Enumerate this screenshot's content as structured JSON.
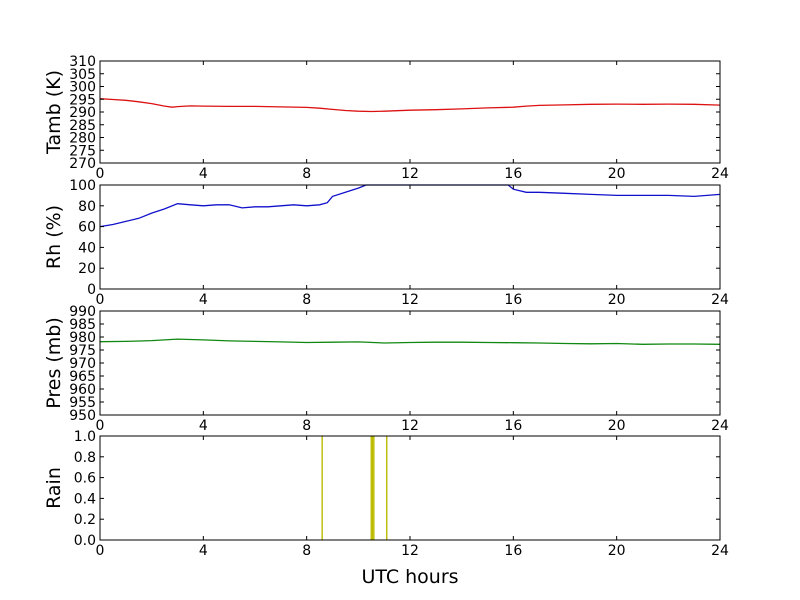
{
  "chart_data": [
    {
      "type": "line",
      "ylabel": "Tamb (K)",
      "xlim": [
        0,
        24
      ],
      "ylim": [
        270,
        310
      ],
      "xticks": [
        "0",
        "4",
        "8",
        "12",
        "16",
        "20",
        "24"
      ],
      "yticks": [
        "270",
        "275",
        "280",
        "285",
        "290",
        "295",
        "300",
        "305",
        "310"
      ],
      "color": "#dd1111",
      "series": [
        {
          "x": [
            0,
            0.5,
            1,
            1.5,
            2,
            2.5,
            2.8,
            3,
            3.5,
            4,
            5,
            6,
            7,
            8,
            8.5,
            9,
            9.5,
            10,
            10.5,
            11,
            12,
            13,
            14,
            15,
            16,
            16.5,
            17,
            18,
            19,
            20,
            21,
            22,
            23,
            24
          ],
          "y": [
            295.2,
            294.9,
            294.6,
            294.0,
            293.3,
            292.3,
            291.9,
            292.1,
            292.4,
            292.3,
            292.2,
            292.2,
            292.0,
            291.8,
            291.5,
            291.0,
            290.6,
            290.3,
            290.2,
            290.3,
            290.7,
            290.9,
            291.2,
            291.6,
            291.9,
            292.3,
            292.6,
            292.8,
            293.0,
            293.1,
            293.0,
            293.1,
            293.0,
            292.7
          ]
        }
      ]
    },
    {
      "type": "line",
      "ylabel": "Rh (%)",
      "xlim": [
        0,
        24
      ],
      "ylim": [
        0,
        100
      ],
      "xticks": [
        "0",
        "4",
        "8",
        "12",
        "16",
        "20",
        "24"
      ],
      "yticks": [
        "0",
        "20",
        "40",
        "60",
        "80",
        "100"
      ],
      "color": "#1111cc",
      "series": [
        {
          "x": [
            0,
            0.5,
            1,
            1.5,
            2,
            2.5,
            3,
            3.5,
            4,
            4.5,
            5,
            5.5,
            6,
            6.5,
            7,
            7.5,
            8,
            8.5,
            8.8,
            9,
            9.5,
            10,
            10.3,
            11,
            12,
            13,
            14,
            15,
            15.8,
            16,
            16.5,
            17,
            18,
            19,
            20,
            21,
            22,
            23,
            24
          ],
          "y": [
            60,
            62,
            65,
            68,
            73,
            77,
            82,
            81,
            80,
            81,
            81,
            78,
            79,
            79,
            80,
            81,
            80,
            81,
            83,
            89,
            93,
            97,
            100,
            100,
            100,
            100,
            100,
            100,
            100,
            96,
            93,
            93,
            92,
            91,
            90,
            90,
            90,
            89,
            91
          ]
        }
      ]
    },
    {
      "type": "line",
      "ylabel": "Pres (mb)",
      "xlim": [
        0,
        24
      ],
      "ylim": [
        950,
        990
      ],
      "xticks": [
        "0",
        "4",
        "8",
        "12",
        "16",
        "20",
        "24"
      ],
      "yticks": [
        "950",
        "955",
        "960",
        "965",
        "970",
        "975",
        "980",
        "985",
        "990"
      ],
      "color": "#118811",
      "series": [
        {
          "x": [
            0,
            1,
            2,
            3,
            4,
            5,
            6,
            7,
            8,
            9,
            10,
            11,
            12,
            13,
            14,
            15,
            16,
            17,
            18,
            19,
            20,
            21,
            22,
            23,
            24
          ],
          "y": [
            978.2,
            978.3,
            978.6,
            979.2,
            978.9,
            978.5,
            978.3,
            978.1,
            977.9,
            978.0,
            978.1,
            977.7,
            977.9,
            978.0,
            978.0,
            977.9,
            977.8,
            977.7,
            977.5,
            977.4,
            977.5,
            977.2,
            977.3,
            977.3,
            977.2
          ]
        }
      ]
    },
    {
      "type": "bar",
      "ylabel": "Rain",
      "xlabel": "UTC hours",
      "xlim": [
        0,
        24
      ],
      "ylim": [
        0,
        1
      ],
      "xticks": [
        "0",
        "4",
        "8",
        "12",
        "16",
        "20",
        "24"
      ],
      "yticks": [
        "0.0",
        "0.2",
        "0.4",
        "0.6",
        "0.8",
        "1.0"
      ],
      "color": "#bbbb00",
      "events": [
        8.6,
        10.5,
        10.55,
        10.6,
        11.1
      ]
    }
  ]
}
